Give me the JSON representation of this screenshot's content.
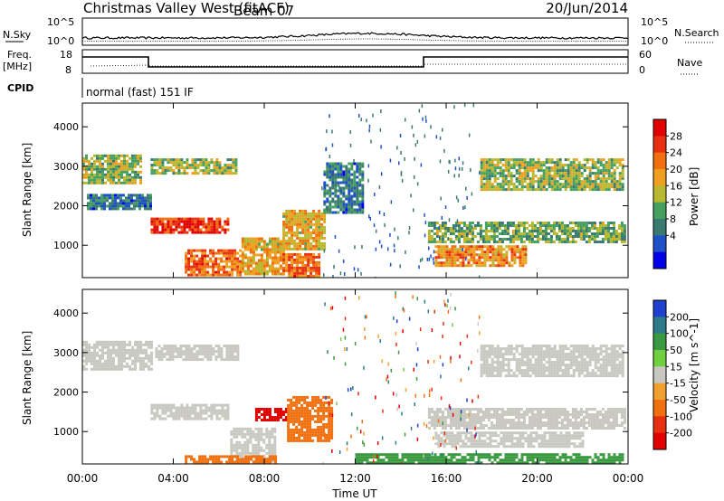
{
  "header": {
    "station": "Christmas Valley West (fitACF)",
    "beam": "Beam 07",
    "date": "20/Jun/2014"
  },
  "panels": {
    "nsky_label": "N.Sky",
    "nsky_ticks": [
      "10^5",
      "10^0"
    ],
    "nsearch_label": "N.Search",
    "freq_label": "Freq.",
    "freq_unit": "[MHz]",
    "freq_ticks": [
      "18",
      "8"
    ],
    "nave_ticks": [
      "60",
      "0"
    ],
    "nave_label": "Nave",
    "cpid_label": "CPID",
    "cpid_value": "normal (fast) 151 IF"
  },
  "colors": {
    "power_scale": [
      "#0000e6",
      "#2050c8",
      "#3a7a70",
      "#46a060",
      "#b8b830",
      "#f0a020",
      "#f07010",
      "#e83010",
      "#e00000"
    ],
    "velocity_scale": [
      "#2040d0",
      "#2c7a8a",
      "#3a9a40",
      "#70d040",
      "#c8c8c0",
      "#f0a030",
      "#f07010",
      "#e83010",
      "#e00000"
    ]
  },
  "chart_data": [
    {
      "type": "heatmap",
      "title": "",
      "ylabel": "Slant Range [km]",
      "xlabel": "",
      "ylim": [
        180,
        4600
      ],
      "xlim": [
        "00:00",
        "24:00"
      ],
      "yticks": [
        "1000",
        "2000",
        "3000",
        "4000"
      ],
      "colorbar": {
        "label": "Power [dB]",
        "ticks": [
          "4",
          "8",
          "12",
          "16",
          "20",
          "24",
          "28"
        ],
        "range": [
          0,
          30
        ]
      },
      "regions": [
        {
          "t": [
            0.0,
            2.6
          ],
          "range": [
            2600,
            3300
          ],
          "value": 14
        },
        {
          "t": [
            0.2,
            3.0
          ],
          "range": [
            1900,
            2300
          ],
          "value": 8
        },
        {
          "t": [
            3.0,
            6.4
          ],
          "range": [
            1300,
            1700
          ],
          "value": 26
        },
        {
          "t": [
            3.0,
            6.8
          ],
          "range": [
            2800,
            3200
          ],
          "value": 14
        },
        {
          "t": [
            4.5,
            7.0
          ],
          "range": [
            250,
            900
          ],
          "value": 22
        },
        {
          "t": [
            7.0,
            8.8
          ],
          "range": [
            250,
            1200
          ],
          "value": 18
        },
        {
          "t": [
            8.8,
            10.6
          ],
          "range": [
            900,
            1900
          ],
          "value": 18
        },
        {
          "t": [
            8.8,
            10.4
          ],
          "range": [
            250,
            800
          ],
          "value": 22
        },
        {
          "t": [
            10.6,
            12.3
          ],
          "range": [
            1800,
            3100
          ],
          "value": 8
        },
        {
          "t": [
            15.2,
            23.8
          ],
          "range": [
            1100,
            1600
          ],
          "value": 12
        },
        {
          "t": [
            15.5,
            19.5
          ],
          "range": [
            500,
            1000
          ],
          "value": 20
        },
        {
          "t": [
            17.5,
            23.8
          ],
          "range": [
            2400,
            3200
          ],
          "value": 14
        }
      ]
    },
    {
      "type": "heatmap",
      "title": "",
      "ylabel": "Slant Range [km]",
      "xlabel": "Time UT",
      "ylim": [
        180,
        4600
      ],
      "xticks": [
        "00:00",
        "04:00",
        "08:00",
        "12:00",
        "16:00",
        "20:00",
        "00:00"
      ],
      "yticks": [
        "1000",
        "2000",
        "3000",
        "4000"
      ],
      "colorbar": {
        "label": "Velocity [m s^-1]",
        "ticks": [
          "200",
          "100",
          "50",
          "15",
          "-15",
          "-50",
          "-100",
          "-200"
        ],
        "range": [
          -250,
          250
        ]
      },
      "regions": [
        {
          "t": [
            0.0,
            3.0
          ],
          "range": [
            2600,
            3300
          ],
          "value": 0
        },
        {
          "t": [
            3.0,
            6.4
          ],
          "range": [
            1300,
            1700
          ],
          "value": 0
        },
        {
          "t": [
            3.2,
            6.8
          ],
          "range": [
            2800,
            3200
          ],
          "value": 0
        },
        {
          "t": [
            6.5,
            8.5
          ],
          "range": [
            250,
            1100
          ],
          "value": 0
        },
        {
          "t": [
            7.6,
            9.0
          ],
          "range": [
            1300,
            1600
          ],
          "value": -200
        },
        {
          "t": [
            9.0,
            11.0
          ],
          "range": [
            800,
            1900
          ],
          "value": -75
        },
        {
          "t": [
            4.5,
            8.5
          ],
          "range": [
            180,
            400
          ],
          "value": -75
        },
        {
          "t": [
            15.2,
            23.8
          ],
          "range": [
            1100,
            1600
          ],
          "value": 0
        },
        {
          "t": [
            15.5,
            22.0
          ],
          "range": [
            600,
            1000
          ],
          "value": 0
        },
        {
          "t": [
            17.5,
            23.8
          ],
          "range": [
            2400,
            3200
          ],
          "value": 0
        },
        {
          "t": [
            12.0,
            23.8
          ],
          "range": [
            180,
            450
          ],
          "value": 50
        }
      ]
    }
  ]
}
